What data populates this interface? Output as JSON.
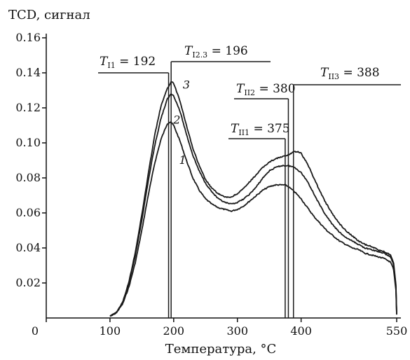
{
  "chart_data": {
    "type": "line",
    "ylabel": "TCD, сигнал",
    "xlabel": "Температура, °C",
    "xlim": [
      0,
      550
    ],
    "ylim": [
      0,
      0.16
    ],
    "x_ticks": [
      "0",
      "100",
      "200",
      "300",
      "400",
      "550"
    ],
    "x_tick_values": [
      0,
      100,
      200,
      300,
      400,
      550
    ],
    "y_ticks": [
      "0.02",
      "0.04",
      "0.06",
      "0.08",
      "0.10",
      "0.12",
      "0.14",
      "0.16"
    ],
    "y_tick_values": [
      0.02,
      0.04,
      0.06,
      0.08,
      0.1,
      0.12,
      0.14,
      0.16
    ],
    "grid": false,
    "series": [
      {
        "name": "1",
        "x": [
          100,
          110,
          120,
          130,
          140,
          150,
          160,
          170,
          180,
          190,
          195,
          200,
          210,
          220,
          230,
          240,
          250,
          260,
          270,
          280,
          290,
          300,
          310,
          320,
          330,
          340,
          350,
          360,
          370,
          375,
          380,
          390,
          400,
          410,
          420,
          430,
          440,
          450,
          460,
          470,
          480,
          490,
          500,
          510,
          520,
          530,
          540,
          545,
          549,
          550
        ],
        "values": [
          0.001,
          0.003,
          0.008,
          0.018,
          0.032,
          0.05,
          0.07,
          0.088,
          0.102,
          0.111,
          0.112,
          0.11,
          0.101,
          0.09,
          0.08,
          0.073,
          0.068,
          0.065,
          0.063,
          0.062,
          0.061,
          0.062,
          0.064,
          0.067,
          0.07,
          0.073,
          0.075,
          0.076,
          0.076,
          0.076,
          0.075,
          0.072,
          0.068,
          0.063,
          0.058,
          0.054,
          0.05,
          0.047,
          0.044,
          0.042,
          0.04,
          0.039,
          0.037,
          0.036,
          0.035,
          0.034,
          0.032,
          0.028,
          0.015,
          0.002
        ]
      },
      {
        "name": "2",
        "x": [
          100,
          110,
          120,
          130,
          140,
          150,
          160,
          170,
          180,
          190,
          196,
          200,
          210,
          220,
          230,
          240,
          250,
          260,
          270,
          280,
          290,
          300,
          310,
          320,
          330,
          340,
          350,
          360,
          370,
          380,
          390,
          400,
          410,
          420,
          430,
          440,
          450,
          460,
          470,
          480,
          490,
          500,
          510,
          520,
          530,
          540,
          545,
          549,
          550
        ],
        "values": [
          0.001,
          0.003,
          0.009,
          0.02,
          0.036,
          0.056,
          0.078,
          0.098,
          0.114,
          0.125,
          0.128,
          0.127,
          0.118,
          0.105,
          0.093,
          0.084,
          0.077,
          0.072,
          0.068,
          0.066,
          0.065,
          0.066,
          0.068,
          0.071,
          0.075,
          0.08,
          0.084,
          0.086,
          0.087,
          0.087,
          0.086,
          0.083,
          0.078,
          0.071,
          0.064,
          0.058,
          0.053,
          0.049,
          0.046,
          0.044,
          0.042,
          0.04,
          0.039,
          0.038,
          0.037,
          0.035,
          0.031,
          0.017,
          0.002
        ]
      },
      {
        "name": "3",
        "x": [
          100,
          110,
          120,
          130,
          140,
          150,
          160,
          170,
          180,
          190,
          196,
          200,
          210,
          220,
          230,
          240,
          250,
          260,
          270,
          280,
          290,
          300,
          310,
          320,
          330,
          340,
          350,
          360,
          370,
          380,
          388,
          395,
          400,
          410,
          420,
          430,
          440,
          450,
          460,
          470,
          480,
          490,
          500,
          510,
          520,
          530,
          540,
          545,
          549,
          550
        ],
        "values": [
          0.001,
          0.003,
          0.009,
          0.021,
          0.038,
          0.059,
          0.082,
          0.104,
          0.121,
          0.131,
          0.135,
          0.134,
          0.124,
          0.11,
          0.097,
          0.087,
          0.079,
          0.074,
          0.071,
          0.069,
          0.069,
          0.071,
          0.074,
          0.078,
          0.082,
          0.086,
          0.089,
          0.091,
          0.092,
          0.093,
          0.095,
          0.095,
          0.094,
          0.088,
          0.08,
          0.072,
          0.065,
          0.059,
          0.054,
          0.05,
          0.047,
          0.044,
          0.042,
          0.041,
          0.039,
          0.038,
          0.036,
          0.032,
          0.018,
          0.003
        ]
      }
    ],
    "annotations": [
      {
        "symbol": "T",
        "subscript": "I1",
        "value": "192",
        "x": 192,
        "anchor_side": "left"
      },
      {
        "symbol": "T",
        "subscript": "I2.3",
        "value": "196",
        "x": 196,
        "anchor_side": "right"
      },
      {
        "symbol": "T",
        "subscript": "II1",
        "value": "375",
        "x": 375,
        "anchor_side": "left"
      },
      {
        "symbol": "T",
        "subscript": "II2",
        "value": "380",
        "x": 380,
        "anchor_side": "left"
      },
      {
        "symbol": "T",
        "subscript": "II3",
        "value": "388",
        "x": 388,
        "anchor_side": "right"
      }
    ],
    "curve_labels": [
      {
        "text": "1",
        "series": "1",
        "x": 205,
        "y": 0.088
      },
      {
        "text": "2",
        "series": "2",
        "x": 205,
        "y": 0.111
      },
      {
        "text": "3",
        "series": "3",
        "x": 218,
        "y": 0.13
      }
    ]
  }
}
